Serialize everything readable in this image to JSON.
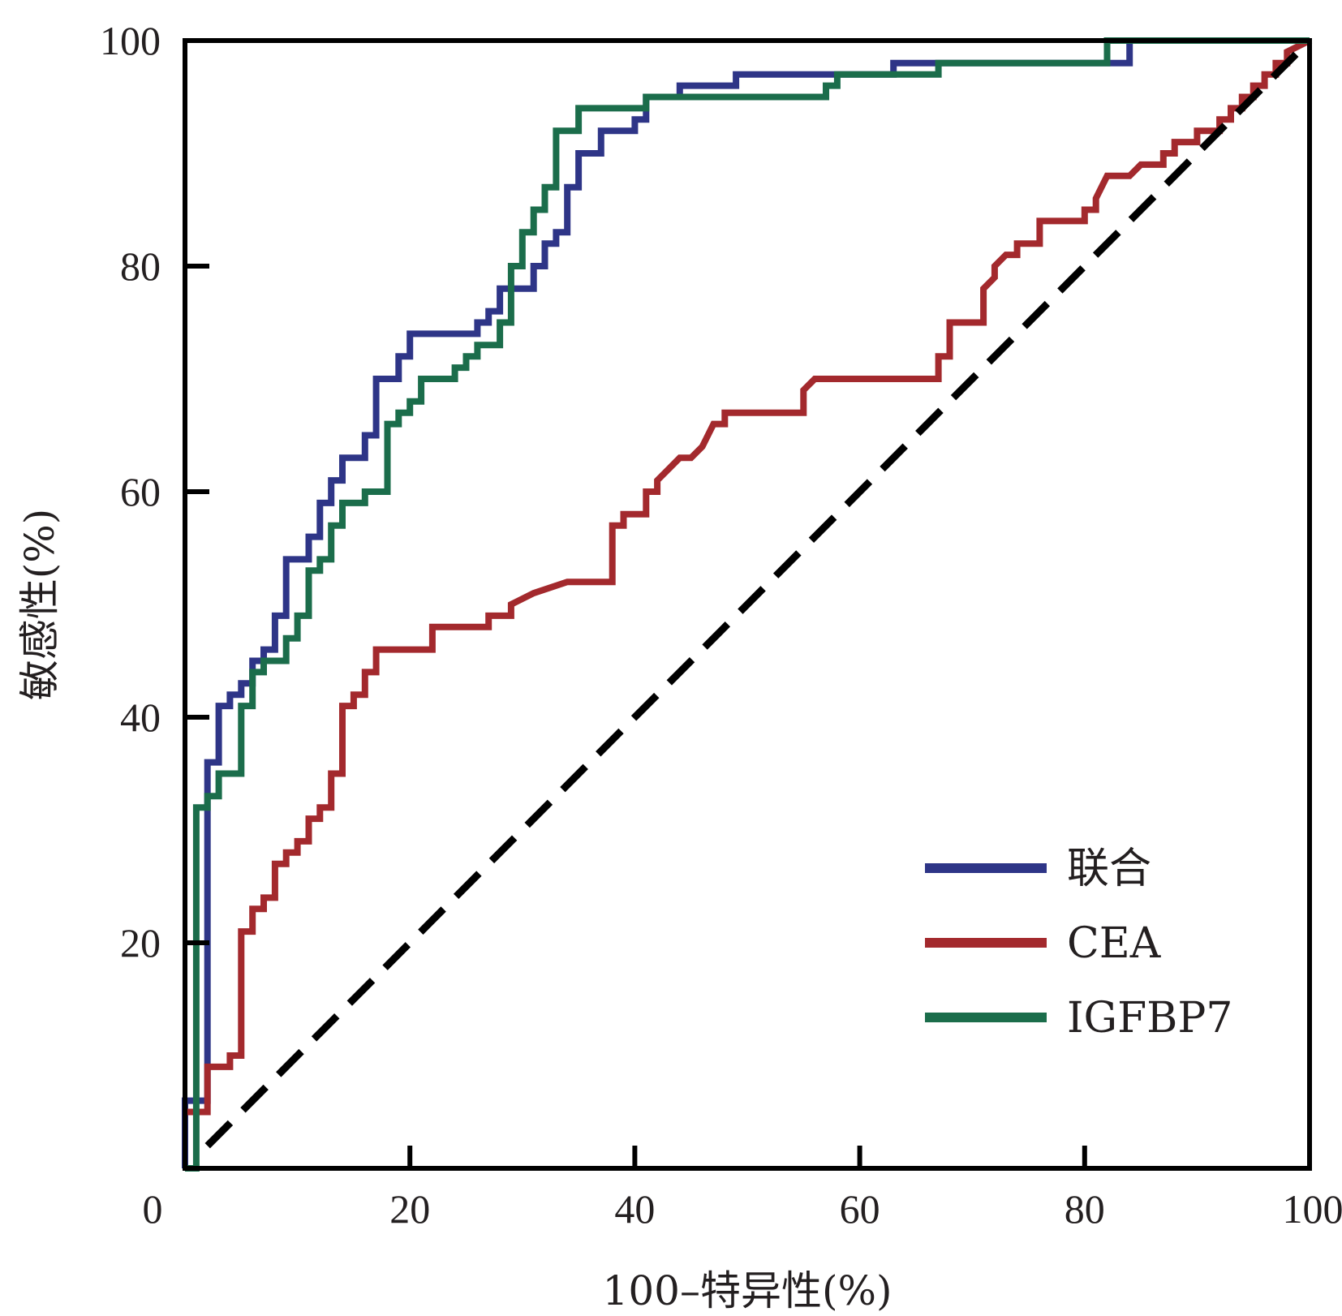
{
  "chart_data": {
    "type": "line",
    "title": "",
    "xlabel": "100–特异性(%)",
    "ylabel": "敏感性(%)",
    "xlim": [
      0,
      100
    ],
    "ylim": [
      0,
      100
    ],
    "xticks": [
      "0",
      "20",
      "40",
      "60",
      "80",
      "100"
    ],
    "yticks": [
      "20",
      "40",
      "60",
      "80",
      "100"
    ],
    "grid": false,
    "legend_position": "bottom-right",
    "series": [
      {
        "name": "联合",
        "color": "#2e3587",
        "points": [
          [
            0,
            0
          ],
          [
            0,
            6
          ],
          [
            2,
            6
          ],
          [
            2,
            32
          ],
          [
            2,
            36
          ],
          [
            3,
            36
          ],
          [
            3,
            41
          ],
          [
            4,
            41
          ],
          [
            4,
            42
          ],
          [
            5,
            42
          ],
          [
            5,
            43
          ],
          [
            6,
            43
          ],
          [
            6,
            45
          ],
          [
            7,
            45
          ],
          [
            7,
            46
          ],
          [
            8,
            46
          ],
          [
            8,
            49
          ],
          [
            9,
            49
          ],
          [
            9,
            54
          ],
          [
            11,
            54
          ],
          [
            11,
            56
          ],
          [
            12,
            56
          ],
          [
            12,
            59
          ],
          [
            13,
            59
          ],
          [
            13,
            61
          ],
          [
            14,
            61
          ],
          [
            14,
            63
          ],
          [
            16,
            63
          ],
          [
            16,
            65
          ],
          [
            17,
            65
          ],
          [
            17,
            70
          ],
          [
            19,
            70
          ],
          [
            19,
            72
          ],
          [
            20,
            72
          ],
          [
            20,
            74
          ],
          [
            26,
            74
          ],
          [
            26,
            75
          ],
          [
            27,
            75
          ],
          [
            27,
            76
          ],
          [
            28,
            76
          ],
          [
            28,
            78
          ],
          [
            31,
            78
          ],
          [
            31,
            80
          ],
          [
            32,
            80
          ],
          [
            32,
            82
          ],
          [
            33,
            82
          ],
          [
            33,
            83
          ],
          [
            34,
            83
          ],
          [
            34,
            87
          ],
          [
            35,
            87
          ],
          [
            35,
            90
          ],
          [
            37,
            90
          ],
          [
            37,
            92
          ],
          [
            40,
            92
          ],
          [
            40,
            93
          ],
          [
            41,
            93
          ],
          [
            41,
            95
          ],
          [
            44,
            95
          ],
          [
            44,
            96
          ],
          [
            49,
            96
          ],
          [
            49,
            97
          ],
          [
            63,
            97
          ],
          [
            63,
            98
          ],
          [
            84,
            98
          ],
          [
            84,
            100
          ],
          [
            100,
            100
          ]
        ]
      },
      {
        "name": "CEA",
        "color": "#a3292d",
        "points": [
          [
            0,
            5
          ],
          [
            2,
            5
          ],
          [
            2,
            9
          ],
          [
            4,
            9
          ],
          [
            4,
            10
          ],
          [
            5,
            10
          ],
          [
            5,
            21
          ],
          [
            6,
            21
          ],
          [
            6,
            23
          ],
          [
            7,
            23
          ],
          [
            7,
            24
          ],
          [
            8,
            24
          ],
          [
            8,
            27
          ],
          [
            9,
            27
          ],
          [
            9,
            28
          ],
          [
            10,
            28
          ],
          [
            10,
            29
          ],
          [
            11,
            29
          ],
          [
            11,
            31
          ],
          [
            12,
            31
          ],
          [
            12,
            32
          ],
          [
            13,
            32
          ],
          [
            13,
            35
          ],
          [
            14,
            35
          ],
          [
            14,
            41
          ],
          [
            15,
            41
          ],
          [
            15,
            42
          ],
          [
            16,
            42
          ],
          [
            16,
            44
          ],
          [
            17,
            44
          ],
          [
            17,
            46
          ],
          [
            22,
            46
          ],
          [
            22,
            48
          ],
          [
            27,
            48
          ],
          [
            27,
            49
          ],
          [
            29,
            49
          ],
          [
            29,
            50
          ],
          [
            31,
            51
          ],
          [
            34,
            52
          ],
          [
            38,
            52
          ],
          [
            38,
            57
          ],
          [
            39,
            57
          ],
          [
            39,
            58
          ],
          [
            41,
            58
          ],
          [
            41,
            60
          ],
          [
            42,
            60
          ],
          [
            42,
            61
          ],
          [
            43,
            62
          ],
          [
            44,
            63
          ],
          [
            45,
            63
          ],
          [
            46,
            64
          ],
          [
            47,
            66
          ],
          [
            48,
            66
          ],
          [
            48,
            67
          ],
          [
            55,
            67
          ],
          [
            55,
            69
          ],
          [
            56,
            70
          ],
          [
            67,
            70
          ],
          [
            67,
            72
          ],
          [
            68,
            72
          ],
          [
            68,
            75
          ],
          [
            71,
            75
          ],
          [
            71,
            78
          ],
          [
            72,
            79
          ],
          [
            72,
            80
          ],
          [
            73,
            81
          ],
          [
            74,
            81
          ],
          [
            74,
            82
          ],
          [
            76,
            82
          ],
          [
            76,
            84
          ],
          [
            80,
            84
          ],
          [
            80,
            85
          ],
          [
            81,
            85
          ],
          [
            81,
            86
          ],
          [
            82,
            88
          ],
          [
            84,
            88
          ],
          [
            85,
            89
          ],
          [
            87,
            89
          ],
          [
            87,
            90
          ],
          [
            88,
            90
          ],
          [
            88,
            91
          ],
          [
            90,
            91
          ],
          [
            90,
            92
          ],
          [
            92,
            92
          ],
          [
            92,
            93
          ],
          [
            93,
            93
          ],
          [
            93,
            94
          ],
          [
            94,
            94
          ],
          [
            94,
            95
          ],
          [
            95,
            95
          ],
          [
            95,
            96
          ],
          [
            96,
            96
          ],
          [
            96,
            97
          ],
          [
            97,
            97
          ],
          [
            97,
            98
          ],
          [
            98,
            98
          ],
          [
            98,
            99
          ],
          [
            100,
            100
          ]
        ]
      },
      {
        "name": "IGFBP7",
        "color": "#1b6d4b",
        "points": [
          [
            0,
            0
          ],
          [
            1,
            0
          ],
          [
            1,
            32
          ],
          [
            2,
            32
          ],
          [
            2,
            33
          ],
          [
            3,
            33
          ],
          [
            3,
            35
          ],
          [
            5,
            35
          ],
          [
            5,
            41
          ],
          [
            6,
            41
          ],
          [
            6,
            44
          ],
          [
            7,
            44
          ],
          [
            7,
            45
          ],
          [
            9,
            45
          ],
          [
            9,
            47
          ],
          [
            10,
            47
          ],
          [
            10,
            49
          ],
          [
            11,
            49
          ],
          [
            11,
            53
          ],
          [
            12,
            53
          ],
          [
            12,
            54
          ],
          [
            13,
            54
          ],
          [
            13,
            57
          ],
          [
            14,
            57
          ],
          [
            14,
            59
          ],
          [
            16,
            59
          ],
          [
            16,
            60
          ],
          [
            18,
            60
          ],
          [
            18,
            66
          ],
          [
            19,
            66
          ],
          [
            19,
            67
          ],
          [
            20,
            67
          ],
          [
            20,
            68
          ],
          [
            21,
            68
          ],
          [
            21,
            70
          ],
          [
            24,
            70
          ],
          [
            24,
            71
          ],
          [
            25,
            71
          ],
          [
            25,
            72
          ],
          [
            26,
            72
          ],
          [
            26,
            73
          ],
          [
            28,
            73
          ],
          [
            28,
            75
          ],
          [
            29,
            75
          ],
          [
            29,
            80
          ],
          [
            30,
            80
          ],
          [
            30,
            83
          ],
          [
            31,
            83
          ],
          [
            31,
            85
          ],
          [
            32,
            85
          ],
          [
            32,
            87
          ],
          [
            33,
            87
          ],
          [
            33,
            92
          ],
          [
            35,
            92
          ],
          [
            35,
            94
          ],
          [
            41,
            94
          ],
          [
            41,
            95
          ],
          [
            57,
            95
          ],
          [
            57,
            96
          ],
          [
            58,
            96
          ],
          [
            58,
            97
          ],
          [
            67,
            97
          ],
          [
            67,
            98
          ],
          [
            82,
            98
          ],
          [
            82,
            100
          ],
          [
            100,
            100
          ]
        ]
      },
      {
        "name": "reference",
        "color": "#000000",
        "dashed": true,
        "points": [
          [
            2,
            2
          ],
          [
            100,
            100
          ]
        ]
      }
    ]
  }
}
